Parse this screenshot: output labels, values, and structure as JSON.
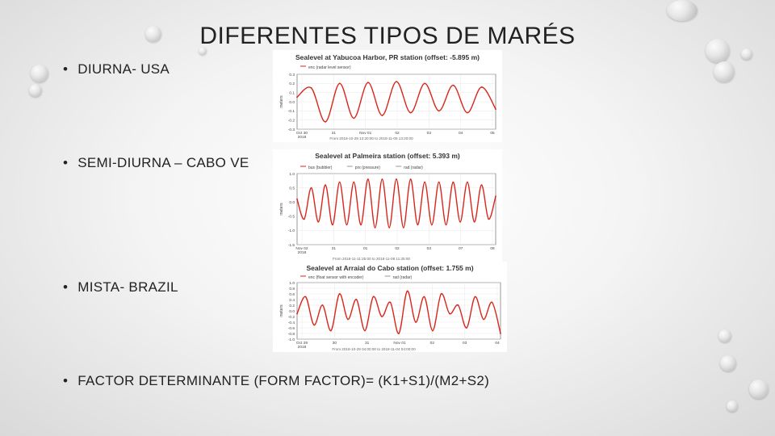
{
  "slide": {
    "title": "DIFERENTES TIPOS DE MARÉS",
    "bullets": [
      "DIURNA- USA",
      "SEMI-DIURNA – CABO VE",
      "MISTA- BRAZIL",
      "FACTOR DETERMINANTE (FORM FACTOR)= (K1+S1)/(M2+S2)"
    ],
    "bullet_marker": "•"
  },
  "colors": {
    "series": "#d8261c",
    "axis": "#555555",
    "grid": "#e2e2e2",
    "text": "#222222"
  },
  "chart_data": [
    {
      "type": "line",
      "title": "Sealevel at Yabucoa Harbor, PR station (offset: -5.895 m)",
      "legend": [
        "enc (radar level sensor)"
      ],
      "ylabel": "meters",
      "ylim": [
        -0.3,
        0.3
      ],
      "yticks": [
        "0.3",
        "0.2",
        "0.1",
        "0.0",
        "-0.1",
        "-0.2",
        "-0.3"
      ],
      "xticks": [
        "Oct 30\n2018",
        "31",
        "Nov 01",
        "02",
        "03",
        "04",
        "05"
      ],
      "footer": "From 2018-10-29 13:20:00 to 2018-11-05 13:20:00",
      "pattern": "diurnal",
      "series": [
        {
          "x": [
            0,
            0.5,
            1,
            1.5,
            2,
            2.5,
            3,
            3.5,
            4,
            4.5,
            5,
            5.5,
            6,
            6.5,
            7
          ],
          "values": [
            0.05,
            0.15,
            -0.22,
            0.2,
            -0.18,
            0.21,
            -0.15,
            0.22,
            -0.12,
            0.2,
            -0.1,
            0.18,
            -0.12,
            0.16,
            -0.08
          ]
        }
      ]
    },
    {
      "type": "line",
      "title": "Sealevel at Palmeira station (offset: 5.393 m)",
      "legend": [
        "bus (bubbler)",
        "prs (pressure)",
        "rad (radar)"
      ],
      "ylabel": "meters",
      "ylim": [
        -1.5,
        1.0
      ],
      "yticks": [
        "1.0",
        "0.5",
        "0.0",
        "-0.5",
        "-1.0",
        "-1.5"
      ],
      "xticks": [
        "Nov 02\n2018",
        "31",
        "01",
        "02",
        "03",
        "07",
        "08"
      ],
      "footer": "From 2018-11-11:25:00 to 2018-11-08 11:25:00",
      "pattern": "semidiurnal",
      "series": [
        {
          "x": [
            0,
            0.25,
            0.5,
            0.75,
            1,
            1.25,
            1.5,
            1.75,
            2,
            2.25,
            2.5,
            2.75,
            3,
            3.25,
            3.5,
            3.75,
            4,
            4.25,
            4.5,
            4.75,
            5,
            5.25,
            5.5,
            5.75,
            6,
            6.25,
            6.5,
            6.75,
            7
          ],
          "values": [
            0.1,
            -0.6,
            0.5,
            -0.7,
            0.6,
            -0.8,
            0.7,
            -0.8,
            0.7,
            -0.8,
            0.8,
            -0.9,
            0.8,
            -0.9,
            0.8,
            -0.9,
            0.8,
            -0.8,
            0.7,
            -0.8,
            0.7,
            -0.8,
            0.7,
            -0.7,
            0.7,
            -0.7,
            0.6,
            -0.6,
            0.2
          ]
        }
      ]
    },
    {
      "type": "line",
      "title": "Sealevel at Arraial do Cabo station (offset: 1.755 m)",
      "legend": [
        "enc (float sensor with encoder)",
        "rad (radar)"
      ],
      "ylabel": "meters",
      "ylim": [
        -1.0,
        1.0
      ],
      "yticks": [
        "1.0",
        "0.8",
        "0.6",
        "0.4",
        "0.2",
        "0.0",
        "-0.2",
        "-0.4",
        "-0.6",
        "-0.8",
        "-1.0"
      ],
      "xticks": [
        "Oct 29\n2018",
        "30",
        "31",
        "Nov 01",
        "02",
        "03",
        "04"
      ],
      "footer": "From 2018-10-29 04:00:00 to 2018-11-04 04:00:00",
      "pattern": "mixed",
      "series": [
        {
          "x": [
            0,
            0.25,
            0.5,
            0.75,
            1,
            1.25,
            1.5,
            1.75,
            2,
            2.25,
            2.5,
            2.75,
            3,
            3.25,
            3.5,
            3.75,
            4,
            4.25,
            4.5,
            4.75,
            5,
            5.25,
            5.5,
            5.75,
            6
          ],
          "values": [
            -0.1,
            0.5,
            -0.5,
            0.2,
            -0.7,
            0.6,
            -0.3,
            0.4,
            -0.7,
            0.5,
            -0.2,
            0.3,
            -0.8,
            0.7,
            -0.4,
            0.5,
            -0.7,
            0.6,
            -0.1,
            0.2,
            -0.6,
            0.5,
            -0.3,
            0.3,
            -0.8
          ]
        }
      ]
    }
  ]
}
